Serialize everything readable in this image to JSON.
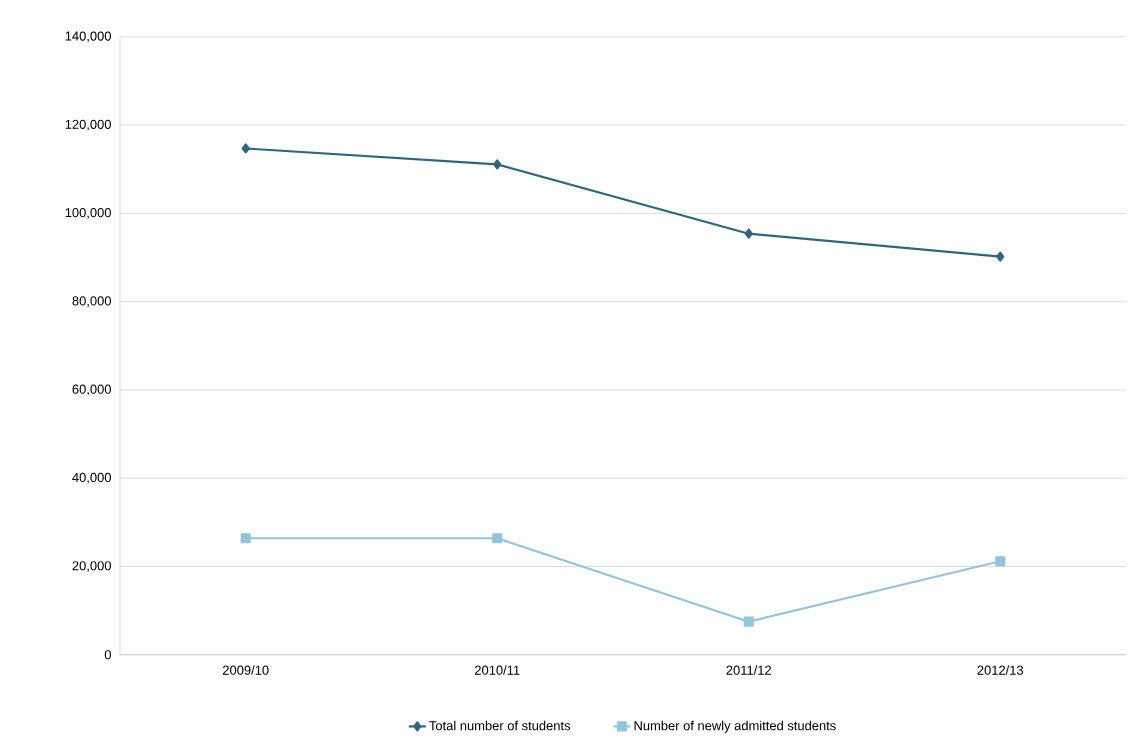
{
  "chart_data": {
    "type": "line",
    "categories": [
      "2009/10",
      "2010/11",
      "2011/12",
      "2012/13"
    ],
    "series": [
      {
        "name": "Total number of students",
        "color": "#2e6680",
        "marker": "diamond",
        "values": [
          114700,
          111100,
          95400,
          90200
        ]
      },
      {
        "name": "Number of newly admitted students",
        "color": "#93c4dc",
        "marker": "square",
        "values": [
          26400,
          26400,
          7500,
          21200
        ]
      }
    ],
    "ylim": [
      0,
      140000
    ],
    "yticks": [
      0,
      {
        "value": 20000,
        "label": "20,000"
      },
      {
        "value": 40000,
        "label": "40,000"
      },
      {
        "value": 60000,
        "label": "60,000"
      },
      {
        "value": 80000,
        "label": "80,000"
      },
      {
        "value": 100000,
        "label": "100,000"
      },
      {
        "value": 120000,
        "label": "120,000"
      },
      {
        "value": 140000,
        "label": "140,000"
      }
    ],
    "grid": "y",
    "legend": "bottom",
    "line_style": "solid"
  }
}
